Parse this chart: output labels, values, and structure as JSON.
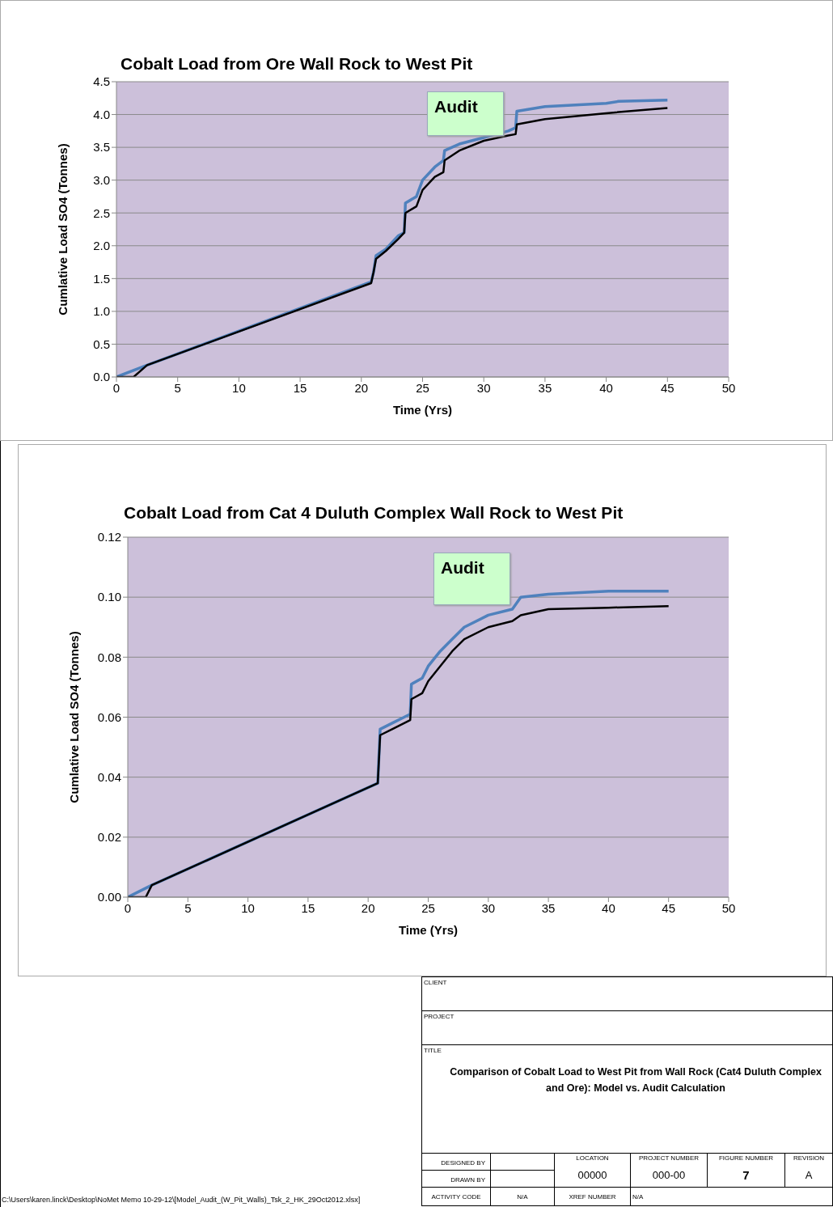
{
  "chart_data": [
    {
      "type": "line",
      "title": "Cobalt Load from Ore Wall Rock to West Pit",
      "xlabel": "Time (Yrs)",
      "ylabel": "Cumlative Load SO4 (Tonnes)",
      "xlim": [
        0,
        50
      ],
      "xticks": [
        0,
        5,
        10,
        15,
        20,
        25,
        30,
        35,
        40,
        45,
        50
      ],
      "ylim": [
        0,
        4.5
      ],
      "yticks": [
        {
          "value": 0,
          "label": "0.0"
        },
        {
          "value": 0.5,
          "label": "0.5"
        },
        {
          "value": 1,
          "label": "1.0"
        },
        {
          "value": 1.5,
          "label": "1.5"
        },
        {
          "value": 2,
          "label": "2.0"
        },
        {
          "value": 2.5,
          "label": "2.5"
        },
        {
          "value": 3,
          "label": "3.0"
        },
        {
          "value": 3.5,
          "label": "3.5"
        },
        {
          "value": 4,
          "label": "4.0"
        },
        {
          "value": 4.5,
          "label": "4.5"
        }
      ],
      "grid": "y",
      "legend": false,
      "marker": "none",
      "series": [
        {
          "name": "Audit",
          "color": "#4f81bd",
          "x": [
            0,
            2.5,
            20.8,
            21,
            21.2,
            22,
            23,
            23.5,
            23.6,
            24.5,
            25,
            26,
            26.7,
            26.8,
            28,
            30,
            32,
            32.6,
            32.7,
            35,
            40,
            41,
            45
          ],
          "values": [
            0,
            0.18,
            1.45,
            1.6,
            1.85,
            1.95,
            2.15,
            2.2,
            2.65,
            2.75,
            3.0,
            3.2,
            3.3,
            3.45,
            3.55,
            3.65,
            3.75,
            3.8,
            4.05,
            4.12,
            4.17,
            4.2,
            4.22
          ]
        },
        {
          "color": "#000000",
          "x": [
            0,
            1.4,
            2.5,
            20.8,
            21,
            21.2,
            22,
            23,
            23.5,
            23.6,
            24.5,
            25,
            26,
            26.7,
            26.8,
            28,
            30,
            32,
            32.6,
            32.7,
            35,
            40,
            45
          ],
          "values": [
            0,
            0,
            0.18,
            1.43,
            1.6,
            1.8,
            1.92,
            2.1,
            2.2,
            2.5,
            2.6,
            2.85,
            3.05,
            3.12,
            3.3,
            3.45,
            3.6,
            3.68,
            3.7,
            3.85,
            3.93,
            4.02,
            4.1
          ]
        }
      ]
    },
    {
      "type": "line",
      "title": "Cobalt Load from Cat 4 Duluth Complex Wall Rock to West Pit",
      "xlabel": "Time (Yrs)",
      "ylabel": "Cumlative Load SO4 (Tonnes)",
      "xlim": [
        0,
        50
      ],
      "xticks": [
        0,
        5,
        10,
        15,
        20,
        25,
        30,
        35,
        40,
        45,
        50
      ],
      "ylim": [
        0,
        0.12
      ],
      "yticks": [
        {
          "value": 0,
          "label": "0.00"
        },
        {
          "value": 0.02,
          "label": "0.02"
        },
        {
          "value": 0.04,
          "label": "0.04"
        },
        {
          "value": 0.06,
          "label": "0.06"
        },
        {
          "value": 0.08,
          "label": "0.08"
        },
        {
          "value": 0.1,
          "label": "0.10"
        },
        {
          "value": 0.12,
          "label": "0.12"
        }
      ],
      "grid": "y",
      "legend": false,
      "marker": "none",
      "series": [
        {
          "name": "Audit",
          "color": "#4f81bd",
          "x": [
            0,
            2,
            20.8,
            21,
            22,
            23,
            23.5,
            23.6,
            24.5,
            25,
            26,
            27,
            28,
            30,
            32,
            32.7,
            35,
            40,
            45
          ],
          "values": [
            0,
            0.004,
            0.038,
            0.056,
            0.058,
            0.06,
            0.061,
            0.071,
            0.073,
            0.077,
            0.082,
            0.086,
            0.09,
            0.094,
            0.096,
            0.1,
            0.101,
            0.102,
            0.102
          ]
        },
        {
          "color": "#000000",
          "x": [
            0,
            1.5,
            2,
            20.8,
            21,
            22,
            23,
            23.5,
            23.6,
            24.5,
            25,
            26,
            27,
            28,
            30,
            32,
            32.7,
            35,
            40,
            45
          ],
          "values": [
            0,
            0,
            0.004,
            0.038,
            0.054,
            0.056,
            0.058,
            0.059,
            0.066,
            0.068,
            0.072,
            0.077,
            0.082,
            0.086,
            0.09,
            0.092,
            0.094,
            0.096,
            0.0965,
            0.097
          ]
        }
      ]
    },
    {
      "type": "other",
      "annotations": [
        "CLIENT",
        "PROJECT",
        "TITLE",
        "Comparison of Cobalt Load to West Pit from Wall Rock (Cat4 Duluth Complex and Ore): Model vs. Audit Calculation",
        "DESIGNED BY",
        "DRAWN BY",
        "LOCATION",
        "00000",
        "PROJECT NUMBER",
        "000-00",
        "FIGURE NUMBER",
        "7",
        "REVISION",
        "A",
        "ACTIVITY CODE",
        "N/A",
        "XREF NUMBER",
        "N/A",
        "C:\\Users\\karen.linck\\Desktop\\NoMet Memo 10-29-12\\[Model_Audit_(W_Pit_Walls)_Tsk_2_HK_29Oct2012.xlsx]"
      ]
    }
  ]
}
